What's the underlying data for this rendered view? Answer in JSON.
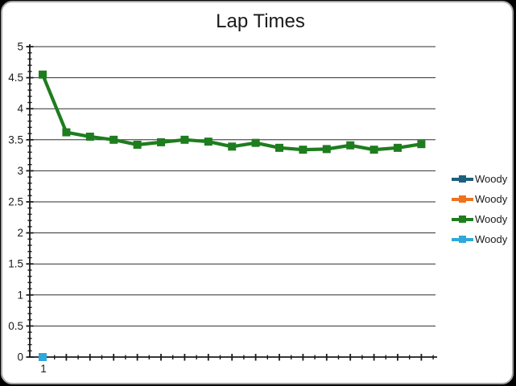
{
  "window": {
    "title": "Lap Times"
  },
  "chart_data": {
    "type": "line",
    "title": "Lap Times",
    "x": [
      1,
      2,
      3,
      4,
      5,
      6,
      7,
      8,
      9,
      10,
      11,
      12,
      13,
      14,
      15,
      16,
      17
    ],
    "series": [
      {
        "name": "Woody",
        "color": "#1e5f7e",
        "marker": "square",
        "values": []
      },
      {
        "name": "Woody",
        "color": "#ee7220",
        "marker": "square",
        "values": []
      },
      {
        "name": "Woody",
        "color": "#1e7d1e",
        "marker": "square",
        "values": [
          4.55,
          3.62,
          3.55,
          3.5,
          3.42,
          3.46,
          3.5,
          3.47,
          3.39,
          3.45,
          3.37,
          3.34,
          3.35,
          3.41,
          3.34,
          3.37,
          3.43
        ]
      },
      {
        "name": "Woody",
        "color": "#2fa8dc",
        "marker": "square",
        "values": [
          0
        ]
      }
    ],
    "xlabel": "",
    "ylabel": "",
    "ylim": [
      0,
      5
    ],
    "y_major_step": 0.5,
    "y_minor_step": 0.1,
    "y_tick_labels": [
      "0",
      "0.5",
      "1",
      "1.5",
      "2",
      "2.5",
      "3",
      "3.5",
      "4",
      "4.5",
      "5"
    ],
    "x_tick_labels_shown": [
      "1"
    ],
    "grid": "horizontal",
    "legend_position": "right",
    "legend_labels": [
      "Woody",
      "Woody",
      "Woody",
      "Woody"
    ]
  },
  "colors": {
    "window_border": "#a6a6a6",
    "window_background": "#ffffff",
    "page_background": "#000000",
    "gridline": "#2e2e2e",
    "axis": "#1a1a1a",
    "text": "#1a1a1a"
  }
}
